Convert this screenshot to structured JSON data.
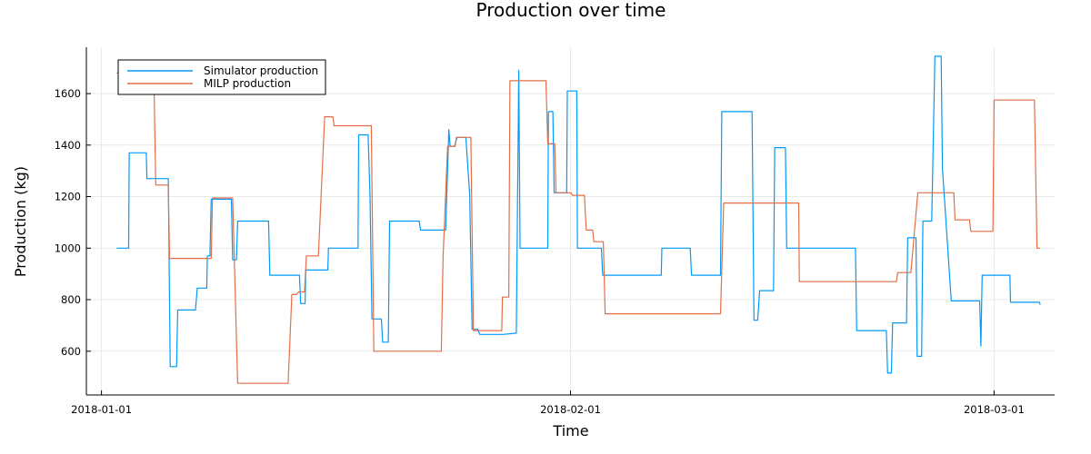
{
  "chart_data": {
    "type": "line",
    "title": "Production over time",
    "xlabel": "Time",
    "ylabel": "Production (kg)",
    "xlim": [
      "2017-12-31T00:00",
      "2018-03-05T00:00"
    ],
    "ylim": [
      430,
      1780
    ],
    "x_ticks": [
      "2018-01-01",
      "2018-02-01",
      "2018-03-01"
    ],
    "y_ticks": [
      600,
      800,
      1000,
      1200,
      1400,
      1600
    ],
    "grid": true,
    "legend_position": "top-left",
    "series": [
      {
        "name": "Simulator production",
        "color": "#009af9",
        "points": [
          [
            "2018-01-02T00:00",
            1000
          ],
          [
            "2018-01-02T19:00",
            1000
          ],
          [
            "2018-01-02T20:00",
            1370
          ],
          [
            "2018-01-03T23:00",
            1370
          ],
          [
            "2018-01-04T00:00",
            1270
          ],
          [
            "2018-01-05T10:00",
            1270
          ],
          [
            "2018-01-05T13:00",
            540
          ],
          [
            "2018-01-05T23:00",
            540
          ],
          [
            "2018-01-06T01:00",
            760
          ],
          [
            "2018-01-07T05:00",
            760
          ],
          [
            "2018-01-07T08:00",
            845
          ],
          [
            "2018-01-07T23:00",
            845
          ],
          [
            "2018-01-08T00:00",
            970
          ],
          [
            "2018-01-08T04:00",
            970
          ],
          [
            "2018-01-08T06:00",
            1190
          ],
          [
            "2018-01-09T14:00",
            1190
          ],
          [
            "2018-01-09T16:00",
            955
          ],
          [
            "2018-01-09T22:00",
            955
          ],
          [
            "2018-01-10T00:00",
            1105
          ],
          [
            "2018-01-12T01:00",
            1105
          ],
          [
            "2018-01-12T03:00",
            895
          ],
          [
            "2018-01-14T02:00",
            895
          ],
          [
            "2018-01-14T04:00",
            785
          ],
          [
            "2018-01-14T11:00",
            785
          ],
          [
            "2018-01-14T12:00",
            915
          ],
          [
            "2018-01-15T23:00",
            915
          ],
          [
            "2018-01-16T00:00",
            1000
          ],
          [
            "2018-01-17T23:00",
            1000
          ],
          [
            "2018-01-18T00:00",
            1440
          ],
          [
            "2018-01-18T15:00",
            1440
          ],
          [
            "2018-01-18T18:00",
            1200
          ],
          [
            "2018-01-18T21:00",
            725
          ],
          [
            "2018-01-19T12:00",
            725
          ],
          [
            "2018-01-19T14:00",
            635
          ],
          [
            "2018-01-19T23:00",
            635
          ],
          [
            "2018-01-20T01:00",
            1105
          ],
          [
            "2018-01-22T00:00",
            1105
          ],
          [
            "2018-01-22T02:00",
            1070
          ],
          [
            "2018-01-23T18:00",
            1070
          ],
          [
            "2018-01-23T23:00",
            1460
          ],
          [
            "2018-01-24T01:00",
            1395
          ],
          [
            "2018-01-24T08:00",
            1395
          ],
          [
            "2018-01-24T12:00",
            1430
          ],
          [
            "2018-01-25T02:00",
            1430
          ],
          [
            "2018-01-25T08:00",
            1210
          ],
          [
            "2018-01-25T12:00",
            685
          ],
          [
            "2018-01-25T21:00",
            685
          ],
          [
            "2018-01-26T00:00",
            665
          ],
          [
            "2018-01-27T13:00",
            665
          ],
          [
            "2018-01-28T10:00",
            670
          ],
          [
            "2018-01-28T14:00",
            1690
          ],
          [
            "2018-01-28T16:00",
            1000
          ],
          [
            "2018-01-30T12:00",
            1000
          ],
          [
            "2018-01-30T13:00",
            1530
          ],
          [
            "2018-01-30T20:00",
            1530
          ],
          [
            "2018-01-30T22:00",
            1215
          ],
          [
            "2018-01-31T18:00",
            1215
          ],
          [
            "2018-01-31T19:00",
            1610
          ],
          [
            "2018-02-01T10:00",
            1610
          ],
          [
            "2018-02-01T11:00",
            1000
          ],
          [
            "2018-02-03T01:00",
            1000
          ],
          [
            "2018-02-03T03:00",
            895
          ],
          [
            "2018-02-07T00:00",
            895
          ],
          [
            "2018-02-07T01:00",
            1000
          ],
          [
            "2018-02-08T22:00",
            1000
          ],
          [
            "2018-02-09T00:00",
            895
          ],
          [
            "2018-02-10T22:00",
            895
          ],
          [
            "2018-02-11T00:00",
            1530
          ],
          [
            "2018-02-13T00:00",
            1530
          ],
          [
            "2018-02-13T03:00",
            720
          ],
          [
            "2018-02-13T09:00",
            720
          ],
          [
            "2018-02-13T12:00",
            835
          ],
          [
            "2018-02-14T10:00",
            835
          ],
          [
            "2018-02-14T12:00",
            1390
          ],
          [
            "2018-02-15T05:00",
            1390
          ],
          [
            "2018-02-15T07:00",
            1000
          ],
          [
            "2018-02-19T20:00",
            1000
          ],
          [
            "2018-02-19T22:00",
            680
          ],
          [
            "2018-02-21T21:00",
            680
          ],
          [
            "2018-02-21T23:00",
            515
          ],
          [
            "2018-02-22T05:00",
            515
          ],
          [
            "2018-02-22T07:00",
            710
          ],
          [
            "2018-02-23T05:00",
            710
          ],
          [
            "2018-02-23T07:00",
            1040
          ],
          [
            "2018-02-23T20:00",
            1040
          ],
          [
            "2018-02-23T22:00",
            580
          ],
          [
            "2018-02-24T05:00",
            580
          ],
          [
            "2018-02-24T07:00",
            1105
          ],
          [
            "2018-02-24T21:00",
            1105
          ],
          [
            "2018-02-25T02:00",
            1745
          ],
          [
            "2018-02-25T12:00",
            1745
          ],
          [
            "2018-02-25T14:00",
            1310
          ],
          [
            "2018-02-26T04:00",
            795
          ],
          [
            "2018-02-28T01:00",
            795
          ],
          [
            "2018-02-28T03:00",
            620
          ],
          [
            "2018-02-28T05:00",
            895
          ],
          [
            "2018-03-02T01:00",
            895
          ],
          [
            "2018-03-02T02:00",
            790
          ],
          [
            "2018-03-04T00:00",
            790
          ],
          [
            "2018-03-04T01:00",
            780
          ]
        ]
      },
      {
        "name": "MILP production",
        "color": "#e26f46",
        "points": [
          [
            "2018-01-02T00:00",
            1680
          ],
          [
            "2018-01-04T11:00",
            1680
          ],
          [
            "2018-01-04T14:00",
            1245
          ],
          [
            "2018-01-05T10:00",
            1245
          ],
          [
            "2018-01-05T12:00",
            960
          ],
          [
            "2018-01-08T06:00",
            960
          ],
          [
            "2018-01-08T08:00",
            1195
          ],
          [
            "2018-01-09T16:00",
            1195
          ],
          [
            "2018-01-10T00:00",
            475
          ],
          [
            "2018-01-13T08:00",
            475
          ],
          [
            "2018-01-13T14:00",
            820
          ],
          [
            "2018-01-13T21:00",
            820
          ],
          [
            "2018-01-14T01:00",
            830
          ],
          [
            "2018-01-14T10:00",
            830
          ],
          [
            "2018-01-14T13:00",
            970
          ],
          [
            "2018-01-15T08:00",
            970
          ],
          [
            "2018-01-15T18:00",
            1510
          ],
          [
            "2018-01-16T07:00",
            1510
          ],
          [
            "2018-01-16T09:00",
            1475
          ],
          [
            "2018-01-18T20:00",
            1475
          ],
          [
            "2018-01-19T00:00",
            600
          ],
          [
            "2018-01-23T11:00",
            600
          ],
          [
            "2018-01-23T14:00",
            970
          ],
          [
            "2018-01-23T21:00",
            1395
          ],
          [
            "2018-01-24T09:00",
            1395
          ],
          [
            "2018-01-24T11:00",
            1430
          ],
          [
            "2018-01-25T10:00",
            1430
          ],
          [
            "2018-01-25T14:00",
            680
          ],
          [
            "2018-01-27T11:00",
            680
          ],
          [
            "2018-01-27T12:00",
            810
          ],
          [
            "2018-01-27T22:00",
            810
          ],
          [
            "2018-01-28T00:00",
            1650
          ],
          [
            "2018-01-30T09:00",
            1650
          ],
          [
            "2018-01-30T12:00",
            1405
          ],
          [
            "2018-01-30T23:00",
            1405
          ],
          [
            "2018-01-31T01:00",
            1215
          ],
          [
            "2018-02-01T01:00",
            1215
          ],
          [
            "2018-02-01T03:00",
            1205
          ],
          [
            "2018-02-01T22:00",
            1205
          ],
          [
            "2018-02-02T01:00",
            1070
          ],
          [
            "2018-02-02T11:00",
            1070
          ],
          [
            "2018-02-02T13:00",
            1025
          ],
          [
            "2018-02-03T04:00",
            1025
          ],
          [
            "2018-02-03T07:00",
            745
          ],
          [
            "2018-02-10T22:00",
            745
          ],
          [
            "2018-02-11T03:00",
            1175
          ],
          [
            "2018-02-16T02:00",
            1175
          ],
          [
            "2018-02-16T03:00",
            870
          ],
          [
            "2018-02-22T13:00",
            870
          ],
          [
            "2018-02-22T15:00",
            905
          ],
          [
            "2018-02-23T12:00",
            905
          ],
          [
            "2018-02-23T23:00",
            1215
          ],
          [
            "2018-02-26T08:00",
            1215
          ],
          [
            "2018-02-26T10:00",
            1110
          ],
          [
            "2018-02-27T09:00",
            1110
          ],
          [
            "2018-02-27T11:00",
            1065
          ],
          [
            "2018-02-28T22:00",
            1065
          ],
          [
            "2018-03-01T00:00",
            1575
          ],
          [
            "2018-03-03T16:00",
            1575
          ],
          [
            "2018-03-03T20:00",
            1000
          ],
          [
            "2018-03-04T01:00",
            1000
          ]
        ]
      }
    ]
  }
}
